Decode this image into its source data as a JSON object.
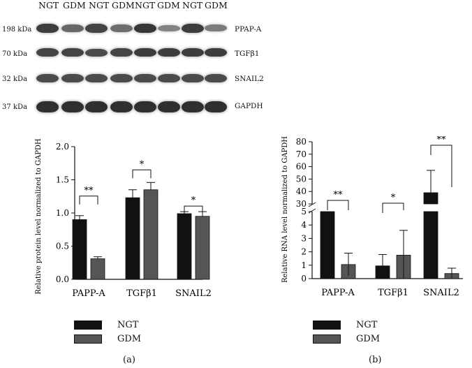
{
  "blot": {
    "lanes": [
      "NGT",
      "GDM",
      "NGT",
      "GDM",
      "NGT",
      "GDM",
      "NGT",
      "GDM"
    ],
    "rows": [
      {
        "kda": "198 kDa",
        "name": "PPAP-A",
        "intensity": [
          0.85,
          0.55,
          0.8,
          0.5,
          0.9,
          0.35,
          0.85,
          0.4
        ]
      },
      {
        "kda": "70 kDa",
        "name": "TGFβ1",
        "intensity": [
          0.8,
          0.8,
          0.75,
          0.8,
          0.85,
          0.85,
          0.85,
          0.85
        ]
      },
      {
        "kda": "32 kDa",
        "name": "SNAIL2",
        "intensity": [
          0.75,
          0.75,
          0.75,
          0.75,
          0.75,
          0.75,
          0.75,
          0.75
        ]
      },
      {
        "kda": "37 kDa",
        "name": "GAPDH",
        "intensity": [
          0.95,
          0.95,
          0.95,
          0.95,
          0.95,
          0.95,
          0.95,
          0.95
        ]
      }
    ]
  },
  "chart_data": [
    {
      "type": "bar",
      "panel": "(a)",
      "categories": [
        "PAPP-A",
        "TGFβ1",
        "SNAIL2"
      ],
      "series": [
        {
          "name": "NGT",
          "values": [
            0.9,
            1.23,
            0.99
          ],
          "errors": [
            0.06,
            0.12,
            0.03
          ],
          "color": "#111111"
        },
        {
          "name": "GDM",
          "values": [
            0.31,
            1.35,
            0.95
          ],
          "errors": [
            0.03,
            0.11,
            0.07
          ],
          "color": "#555555"
        }
      ],
      "ylabel": "Relative protein level normalized to GAPDH",
      "ylim": [
        0,
        2.0
      ],
      "yticks": [
        "0.0",
        "0.5",
        "1.0",
        "1.5",
        "2.0"
      ],
      "significance": [
        "**",
        "*",
        "*"
      ],
      "legend_placement": "bottom-left"
    },
    {
      "type": "bar",
      "panel": "(b)",
      "categories": [
        "PAPP-A",
        "TGFβ1",
        "SNAIL2"
      ],
      "series": [
        {
          "name": "NGT",
          "values": [
            5,
            0.95,
            39
          ],
          "errors": [
            0,
            0.85,
            18
          ],
          "color": "#111111"
        },
        {
          "name": "GDM",
          "values": [
            1.05,
            1.75,
            0.38
          ],
          "errors": [
            0.85,
            1.85,
            0.4
          ],
          "color": "#555555"
        }
      ],
      "ylabel": "Relative RNA level normalized to GAPDH",
      "axis_break": {
        "lower": [
          0,
          5
        ],
        "upper": [
          30,
          80
        ]
      },
      "yticks_lower": [
        "0",
        "1",
        "2",
        "3",
        "4",
        "5"
      ],
      "yticks_upper": [
        "30",
        "40",
        "50",
        "60",
        "70",
        "80"
      ],
      "significance": [
        "**",
        "*",
        "**"
      ],
      "legend_placement": "bottom-left"
    }
  ]
}
